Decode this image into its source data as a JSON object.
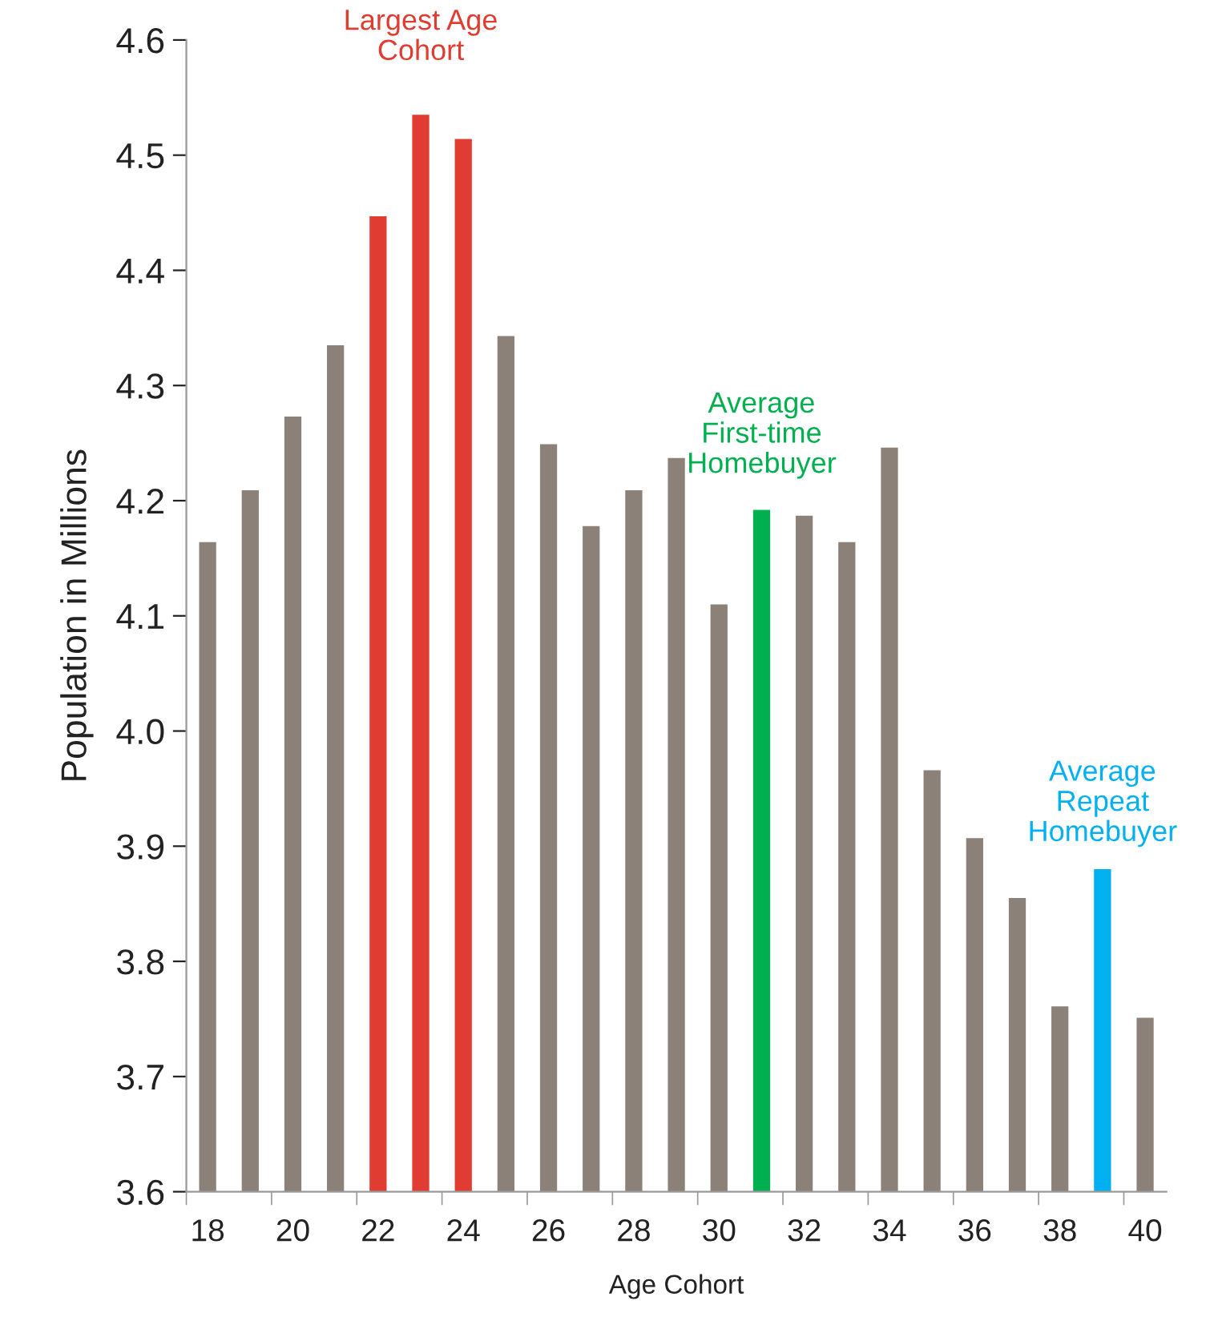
{
  "chart_data": {
    "type": "bar",
    "xlabel": "Age Cohort",
    "ylabel": "Population in Millions",
    "categories": [
      "18",
      null,
      "20",
      null,
      "22",
      null,
      "24",
      null,
      "26",
      null,
      "28",
      null,
      "30",
      null,
      "32",
      null,
      "34",
      null,
      "36",
      null,
      "38",
      null,
      "40"
    ],
    "values": [
      4.164,
      4.209,
      4.273,
      4.335,
      4.447,
      4.535,
      4.514,
      4.343,
      4.249,
      4.178,
      4.209,
      4.237,
      4.11,
      4.192,
      4.187,
      4.164,
      4.246,
      3.966,
      3.907,
      3.855,
      3.761,
      3.88,
      3.751
    ],
    "colors": [
      "#8b8178",
      "#8b8178",
      "#8b8178",
      "#8b8178",
      "#e03c31",
      "#e03c31",
      "#e03c31",
      "#8b8178",
      "#8b8178",
      "#8b8178",
      "#8b8178",
      "#8b8178",
      "#8b8178",
      "#00b050",
      "#8b8178",
      "#8b8178",
      "#8b8178",
      "#8b8178",
      "#8b8178",
      "#8b8178",
      "#8b8178",
      "#00b0f0",
      "#8b8178"
    ],
    "ylim": [
      3.6,
      4.6
    ],
    "yticks": [
      3.6,
      3.7,
      3.8,
      3.9,
      {
        "value": 4.0,
        "label": "4.0"
      },
      4.1,
      4.2,
      4.3,
      4.4,
      4.5,
      4.6
    ],
    "grid": false,
    "legend": false,
    "annotations": [
      "Largest Age\nCohort",
      "Average\nFirst-time\nHomebuyer",
      "Average\nRepeat\nHomebuyer"
    ]
  }
}
